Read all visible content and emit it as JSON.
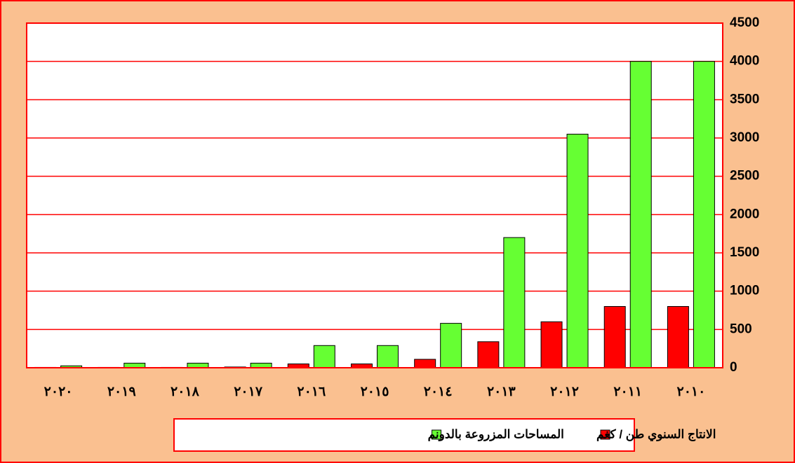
{
  "chart_data": {
    "type": "bar",
    "categories": [
      "٢٠١٠",
      "٢٠١١",
      "٢٠١٢",
      "٢٠١٣",
      "٢٠١٤",
      "٢٠١٥",
      "٢٠١٦",
      "٢٠١٧",
      "٢٠١٨",
      "٢٠١٩",
      "٢٠٢٠"
    ],
    "series": [
      {
        "name": "الانتاج السنوي طن / كغم",
        "color": "#ff0000",
        "values": [
          800,
          800,
          600,
          340,
          110,
          50,
          50,
          10,
          5,
          5,
          5
        ]
      },
      {
        "name": "المساحات المزروعة بالدونم",
        "color": "#66ff33",
        "values": [
          4000,
          4000,
          3050,
          1700,
          580,
          290,
          290,
          60,
          60,
          60,
          25
        ]
      }
    ],
    "ylim": [
      0,
      4500
    ],
    "yticks": [
      0,
      500,
      1000,
      1500,
      2000,
      2500,
      3000,
      3500,
      4000,
      4500
    ],
    "grid": true,
    "legend": "bottom"
  }
}
